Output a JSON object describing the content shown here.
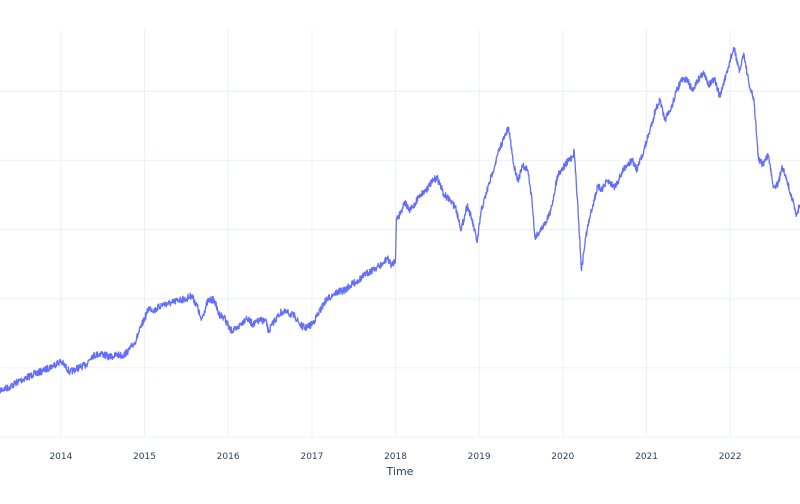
{
  "chart_data": {
    "type": "line",
    "title": "",
    "xlabel": "Time",
    "ylabel": "",
    "x_tick_labels": [
      "2014",
      "2015",
      "2016",
      "2017",
      "2018",
      "2019",
      "2020",
      "2021",
      "2022"
    ],
    "x_range": [
      "2013-04-10",
      "2022-11-02"
    ],
    "grid": true,
    "legend": "none",
    "series_color": "#636efa",
    "grid_color": "#ebf0f8",
    "tick_color": "#2a3f5f",
    "series": [
      {
        "x": [
          "2013-04-10",
          "2013-05-20",
          "2013-07-01",
          "2013-09-01",
          "2013-10-20",
          "2013-11-25",
          "2014-01-01",
          "2014-02-10",
          "2014-03-10",
          "2014-04-20",
          "2014-05-15",
          "2014-06-25",
          "2014-08-01",
          "2014-09-05",
          "2014-10-01",
          "2014-10-25",
          "2014-11-20",
          "2014-12-20",
          "2015-01-20",
          "2015-02-15",
          "2015-03-20",
          "2015-05-01",
          "2015-06-01",
          "2015-07-01",
          "2015-07-25",
          "2015-08-20",
          "2015-09-05",
          "2015-10-05",
          "2015-11-01",
          "2015-11-20",
          "2015-12-15",
          "2016-01-10",
          "2016-02-05",
          "2016-02-25",
          "2016-03-20",
          "2016-04-20",
          "2016-05-20",
          "2016-06-15",
          "2016-06-25",
          "2016-07-20",
          "2016-08-20",
          "2016-09-20",
          "2016-10-20",
          "2016-11-10",
          "2016-12-01",
          "2017-01-01",
          "2017-02-01",
          "2017-03-01",
          "2017-04-10",
          "2017-05-20",
          "2017-06-20",
          "2017-07-25",
          "2017-08-25",
          "2017-09-25",
          "2017-10-20",
          "2017-11-10",
          "2017-11-25",
          "2017-12-15",
          "2018-01-01",
          "2018-01-05",
          "2018-01-20",
          "2018-02-10",
          "2018-03-01",
          "2018-03-20",
          "2018-04-15",
          "2018-05-10",
          "2018-06-01",
          "2018-07-01",
          "2018-08-01",
          "2018-08-25",
          "2018-09-20",
          "2018-10-15",
          "2018-11-10",
          "2018-12-01",
          "2018-12-24",
          "2019-01-10",
          "2019-02-01",
          "2019-03-01",
          "2019-04-01",
          "2019-04-25",
          "2019-05-10",
          "2019-06-01",
          "2019-06-20",
          "2019-07-10",
          "2019-08-01",
          "2019-08-20",
          "2019-09-01",
          "2019-09-20",
          "2019-10-15",
          "2019-11-10",
          "2019-12-10",
          "2020-01-10",
          "2020-02-10",
          "2020-02-20",
          "2020-03-05",
          "2020-03-23",
          "2020-04-10",
          "2020-05-01",
          "2020-06-01",
          "2020-06-20",
          "2020-07-15",
          "2020-08-15",
          "2020-09-10",
          "2020-10-01",
          "2020-10-30",
          "2020-11-20",
          "2020-12-20",
          "2021-01-15",
          "2021-02-10",
          "2021-03-01",
          "2021-03-20",
          "2021-04-15",
          "2021-05-10",
          "2021-06-01",
          "2021-06-25",
          "2021-07-20",
          "2021-08-10",
          "2021-09-05",
          "2021-09-30",
          "2021-10-25",
          "2021-11-18",
          "2021-12-01",
          "2021-12-20",
          "2022-01-03",
          "2022-01-20",
          "2022-02-10",
          "2022-03-01",
          "2022-03-25",
          "2022-04-15",
          "2022-05-05",
          "2022-05-25",
          "2022-06-16",
          "2022-07-10",
          "2022-08-01",
          "2022-08-15",
          "2022-09-05",
          "2022-09-30",
          "2022-10-15",
          "2022-11-02"
        ],
        "y": [
          15,
          15.8,
          17.5,
          19.3,
          20.5,
          21.8,
          23,
          20,
          21,
          22,
          24.5,
          25.2,
          24.2,
          24.8,
          24.6,
          26.2,
          28.2,
          33,
          37.8,
          37.2,
          38.8,
          39.2,
          40.1,
          40.3,
          41.3,
          38.2,
          34.4,
          39.8,
          40.2,
          36.2,
          35.2,
          31.6,
          31.8,
          33.4,
          35,
          33.2,
          34.4,
          34.2,
          31.2,
          34.2,
          36.7,
          36.4,
          35.4,
          33.2,
          32.2,
          33.2,
          36.6,
          39.8,
          42,
          42.6,
          44.2,
          45.6,
          47.2,
          48.6,
          49.4,
          50.2,
          51.8,
          49.6,
          51.3,
          62.6,
          63.8,
          67.4,
          64.8,
          66,
          69.1,
          70.3,
          72.1,
          74.2,
          69.2,
          67.8,
          65.8,
          59.6,
          66.4,
          62.2,
          56,
          64.8,
          69.6,
          75.6,
          82.2,
          85.8,
          87.8,
          77.8,
          73.1,
          77.2,
          76.2,
          67.8,
          57.6,
          58.8,
          61.2,
          64.8,
          74.8,
          77.4,
          79.8,
          81.2,
          68.2,
          48.2,
          57.4,
          63.8,
          71.4,
          70.8,
          73.1,
          71.4,
          74.6,
          77.2,
          78.8,
          76.2,
          81.5,
          87,
          93,
          95.6,
          90,
          92.4,
          97.8,
          100.8,
          101.4,
          98.2,
          100.8,
          103.1,
          100,
          101.2,
          96.4,
          99.8,
          103.2,
          107.4,
          109.8,
          103.2,
          108.6,
          99.6,
          95.6,
          78.8,
          77.8,
          80.4,
          71.4,
          72.6,
          77.4,
          73.2,
          68.1,
          63.8,
          66.4
        ]
      }
    ]
  }
}
